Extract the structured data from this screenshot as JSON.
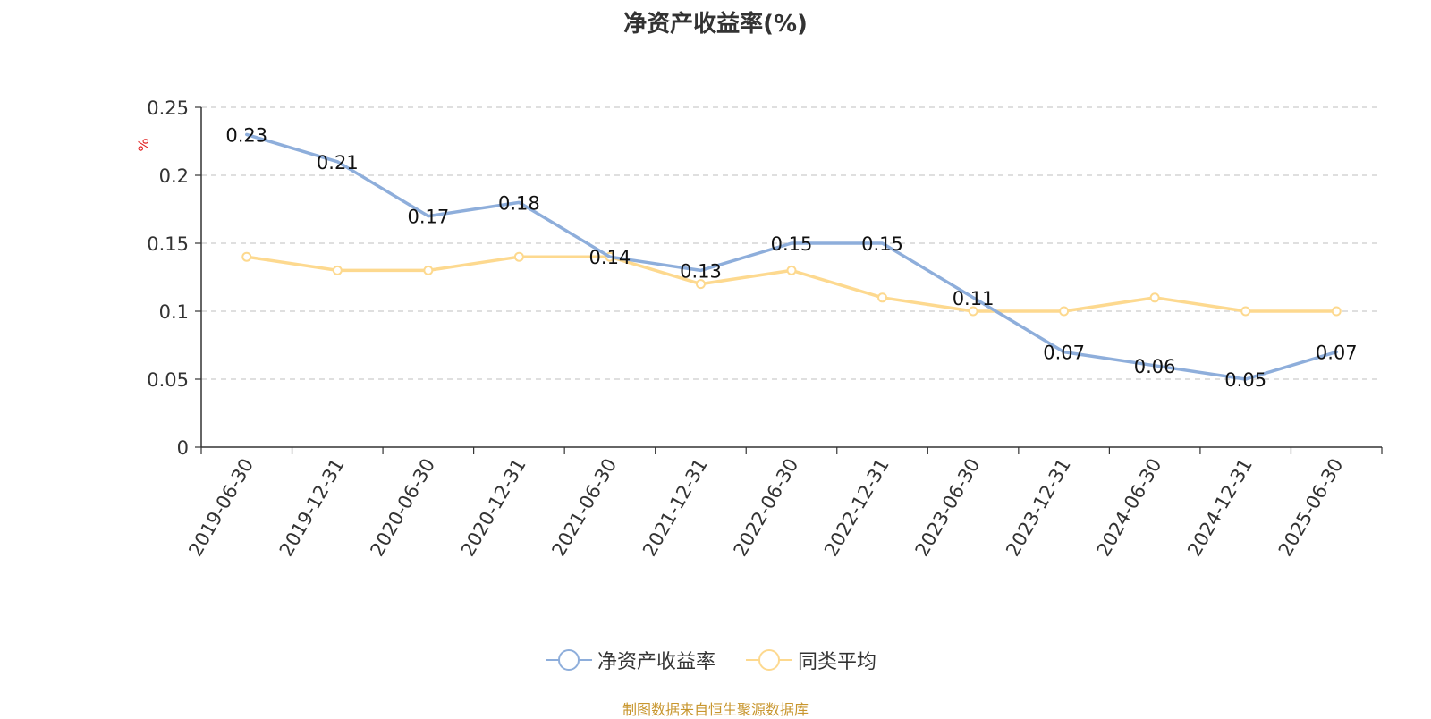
{
  "title": "净资产收益率(%)",
  "source": "制图数据来自恒生聚源数据库",
  "chart_data": {
    "type": "line",
    "title": "净资产收益率(%)",
    "ylabel": "%",
    "xlabel": "",
    "categories": [
      "2019-06-30",
      "2019-12-31",
      "2020-06-30",
      "2020-12-31",
      "2021-06-30",
      "2021-12-31",
      "2022-06-30",
      "2022-12-31",
      "2023-06-30",
      "2023-12-31",
      "2024-06-30",
      "2024-12-31",
      "2025-06-30"
    ],
    "ylim": [
      0,
      0.25
    ],
    "yticks": [
      "0",
      "0.05",
      "0.1",
      "0.15",
      "0.2",
      "0.25"
    ],
    "grid": true,
    "legend_position": "bottom",
    "series": [
      {
        "name": "净资产收益率",
        "color": "#8eaedb",
        "values": [
          0.23,
          0.21,
          0.17,
          0.18,
          0.14,
          0.13,
          0.15,
          0.15,
          0.11,
          0.07,
          0.06,
          0.05,
          0.07
        ],
        "labels": [
          "0.23",
          "0.21",
          "0.17",
          "0.18",
          "0.14",
          "0.13",
          "0.15",
          "0.15",
          "0.11",
          "0.07",
          "0.06",
          "0.05",
          "0.07"
        ]
      },
      {
        "name": "同类平均",
        "color": "#fdd98f",
        "values": [
          0.14,
          0.13,
          0.13,
          0.14,
          0.14,
          0.12,
          0.13,
          0.11,
          0.1,
          0.1,
          0.11,
          0.1,
          0.1
        ]
      }
    ]
  }
}
